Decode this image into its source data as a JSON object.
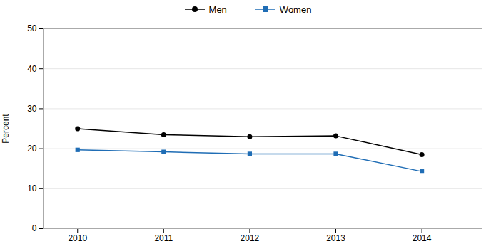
{
  "chart_data": {
    "type": "line",
    "x": [
      2010,
      2011,
      2012,
      2013,
      2014
    ],
    "series": [
      {
        "name": "Men",
        "color": "#000000",
        "marker": "circle",
        "values": [
          25.0,
          23.5,
          23.0,
          23.2,
          18.5
        ]
      },
      {
        "name": "Women",
        "color": "#1f6db5",
        "marker": "square",
        "values": [
          19.7,
          19.2,
          18.7,
          18.7,
          14.3
        ]
      }
    ],
    "ylabel": "Percent",
    "ylim": [
      0,
      50
    ],
    "yticks": [
      0,
      10,
      20,
      30,
      40,
      50
    ],
    "xlim": [
      2009.6,
      2014.7
    ],
    "xticks": [
      2010,
      2011,
      2012,
      2013,
      2014
    ],
    "grid": "y",
    "legend": "top"
  }
}
